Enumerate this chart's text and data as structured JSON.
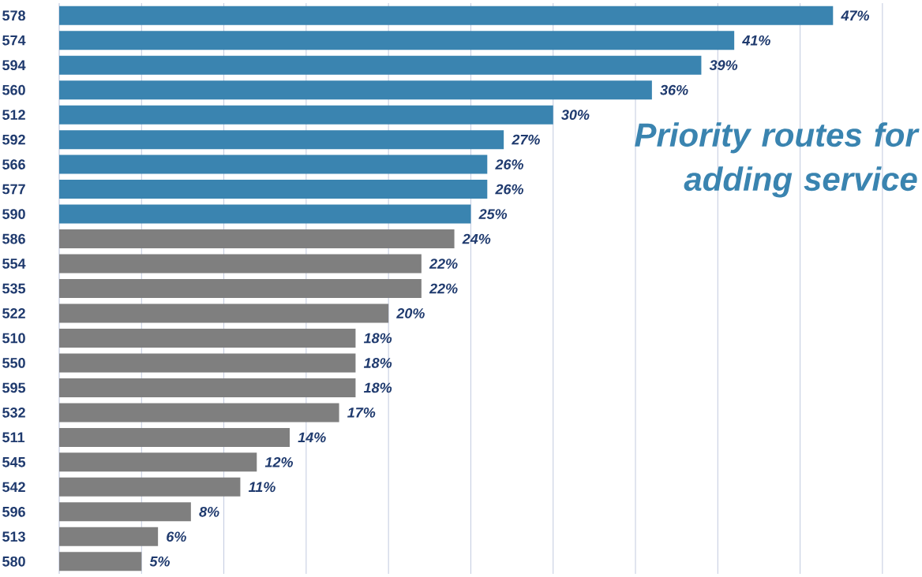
{
  "chart_data": {
    "type": "bar",
    "orientation": "horizontal",
    "categories": [
      "578",
      "574",
      "594",
      "560",
      "512",
      "592",
      "566",
      "577",
      "590",
      "586",
      "554",
      "535",
      "522",
      "510",
      "550",
      "595",
      "532",
      "511",
      "545",
      "542",
      "596",
      "513",
      "580"
    ],
    "values": [
      47,
      41,
      39,
      36,
      30,
      27,
      26,
      26,
      25,
      24,
      22,
      22,
      20,
      18,
      18,
      18,
      17,
      14,
      12,
      11,
      8,
      6,
      5
    ],
    "value_labels": [
      "47%",
      "41%",
      "39%",
      "36%",
      "30%",
      "27%",
      "26%",
      "26%",
      "25%",
      "24%",
      "22%",
      "22%",
      "20%",
      "18%",
      "18%",
      "18%",
      "17%",
      "14%",
      "12%",
      "11%",
      "8%",
      "6%",
      "5%"
    ],
    "colors": [
      "#3a84b0",
      "#3a84b0",
      "#3a84b0",
      "#3a84b0",
      "#3a84b0",
      "#3a84b0",
      "#3a84b0",
      "#3a84b0",
      "#3a84b0",
      "#7f7f7f",
      "#7f7f7f",
      "#7f7f7f",
      "#7f7f7f",
      "#7f7f7f",
      "#7f7f7f",
      "#7f7f7f",
      "#7f7f7f",
      "#7f7f7f",
      "#7f7f7f",
      "#7f7f7f",
      "#7f7f7f",
      "#7f7f7f",
      "#7f7f7f"
    ],
    "grid": "x",
    "tick_labels": "y",
    "annotations": [
      "Priority routes for adding service"
    ]
  }
}
